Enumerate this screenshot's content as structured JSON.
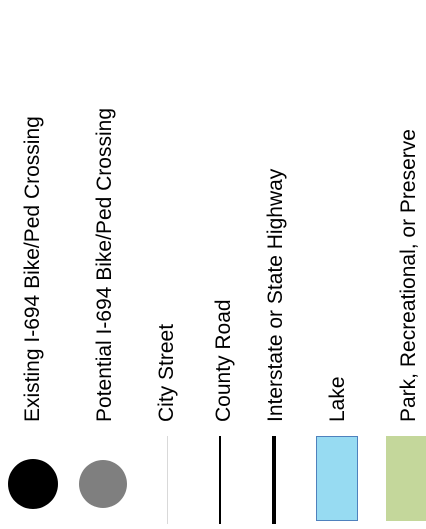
{
  "legend": {
    "items": [
      {
        "label": "Existing I-694 Bike/Ped Crossing",
        "symbol": "circle",
        "color": "#000000"
      },
      {
        "label": "Potential I-694 Bike/Ped Crossing",
        "symbol": "circle",
        "color": "#7f7f7f"
      },
      {
        "label": "City Street",
        "symbol": "line",
        "color": "#d9d9d9"
      },
      {
        "label": "County Road",
        "symbol": "line",
        "color": "#000000"
      },
      {
        "label": "Interstate or State Highway",
        "symbol": "thick-line",
        "color": "#000000"
      },
      {
        "label": "Lake",
        "symbol": "rectangle",
        "color": "#97dbf2"
      },
      {
        "label": "Park, Recreational, or Preserve",
        "symbol": "rectangle",
        "color": "#c4d79b"
      }
    ]
  }
}
